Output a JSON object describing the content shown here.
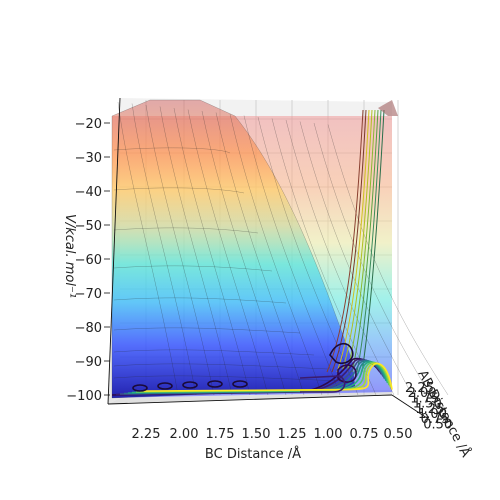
{
  "chart_data": {
    "type": "surface",
    "xlabel": "BC Distance /Å",
    "ylabel": "AB Distance /Å",
    "zlabel": "V/kcal. mol⁻¹",
    "x_ticks": [
      "2.25",
      "2.00",
      "1.75",
      "1.50",
      "1.25",
      "1.00",
      "0.75",
      "0.50"
    ],
    "y_ticks": [
      "2.25",
      "2.00",
      "1.75",
      "1.50",
      "1.25",
      "1.00",
      "0.75",
      "0.50"
    ],
    "z_ticks": [
      -20,
      -30,
      -40,
      -50,
      -60,
      -70,
      -80,
      -90,
      -100
    ],
    "z_range": [
      -102,
      -18
    ],
    "x_range": [
      0.4,
      2.4
    ],
    "colormap": "jet",
    "contour_colormap": "viridis",
    "grid": true
  }
}
